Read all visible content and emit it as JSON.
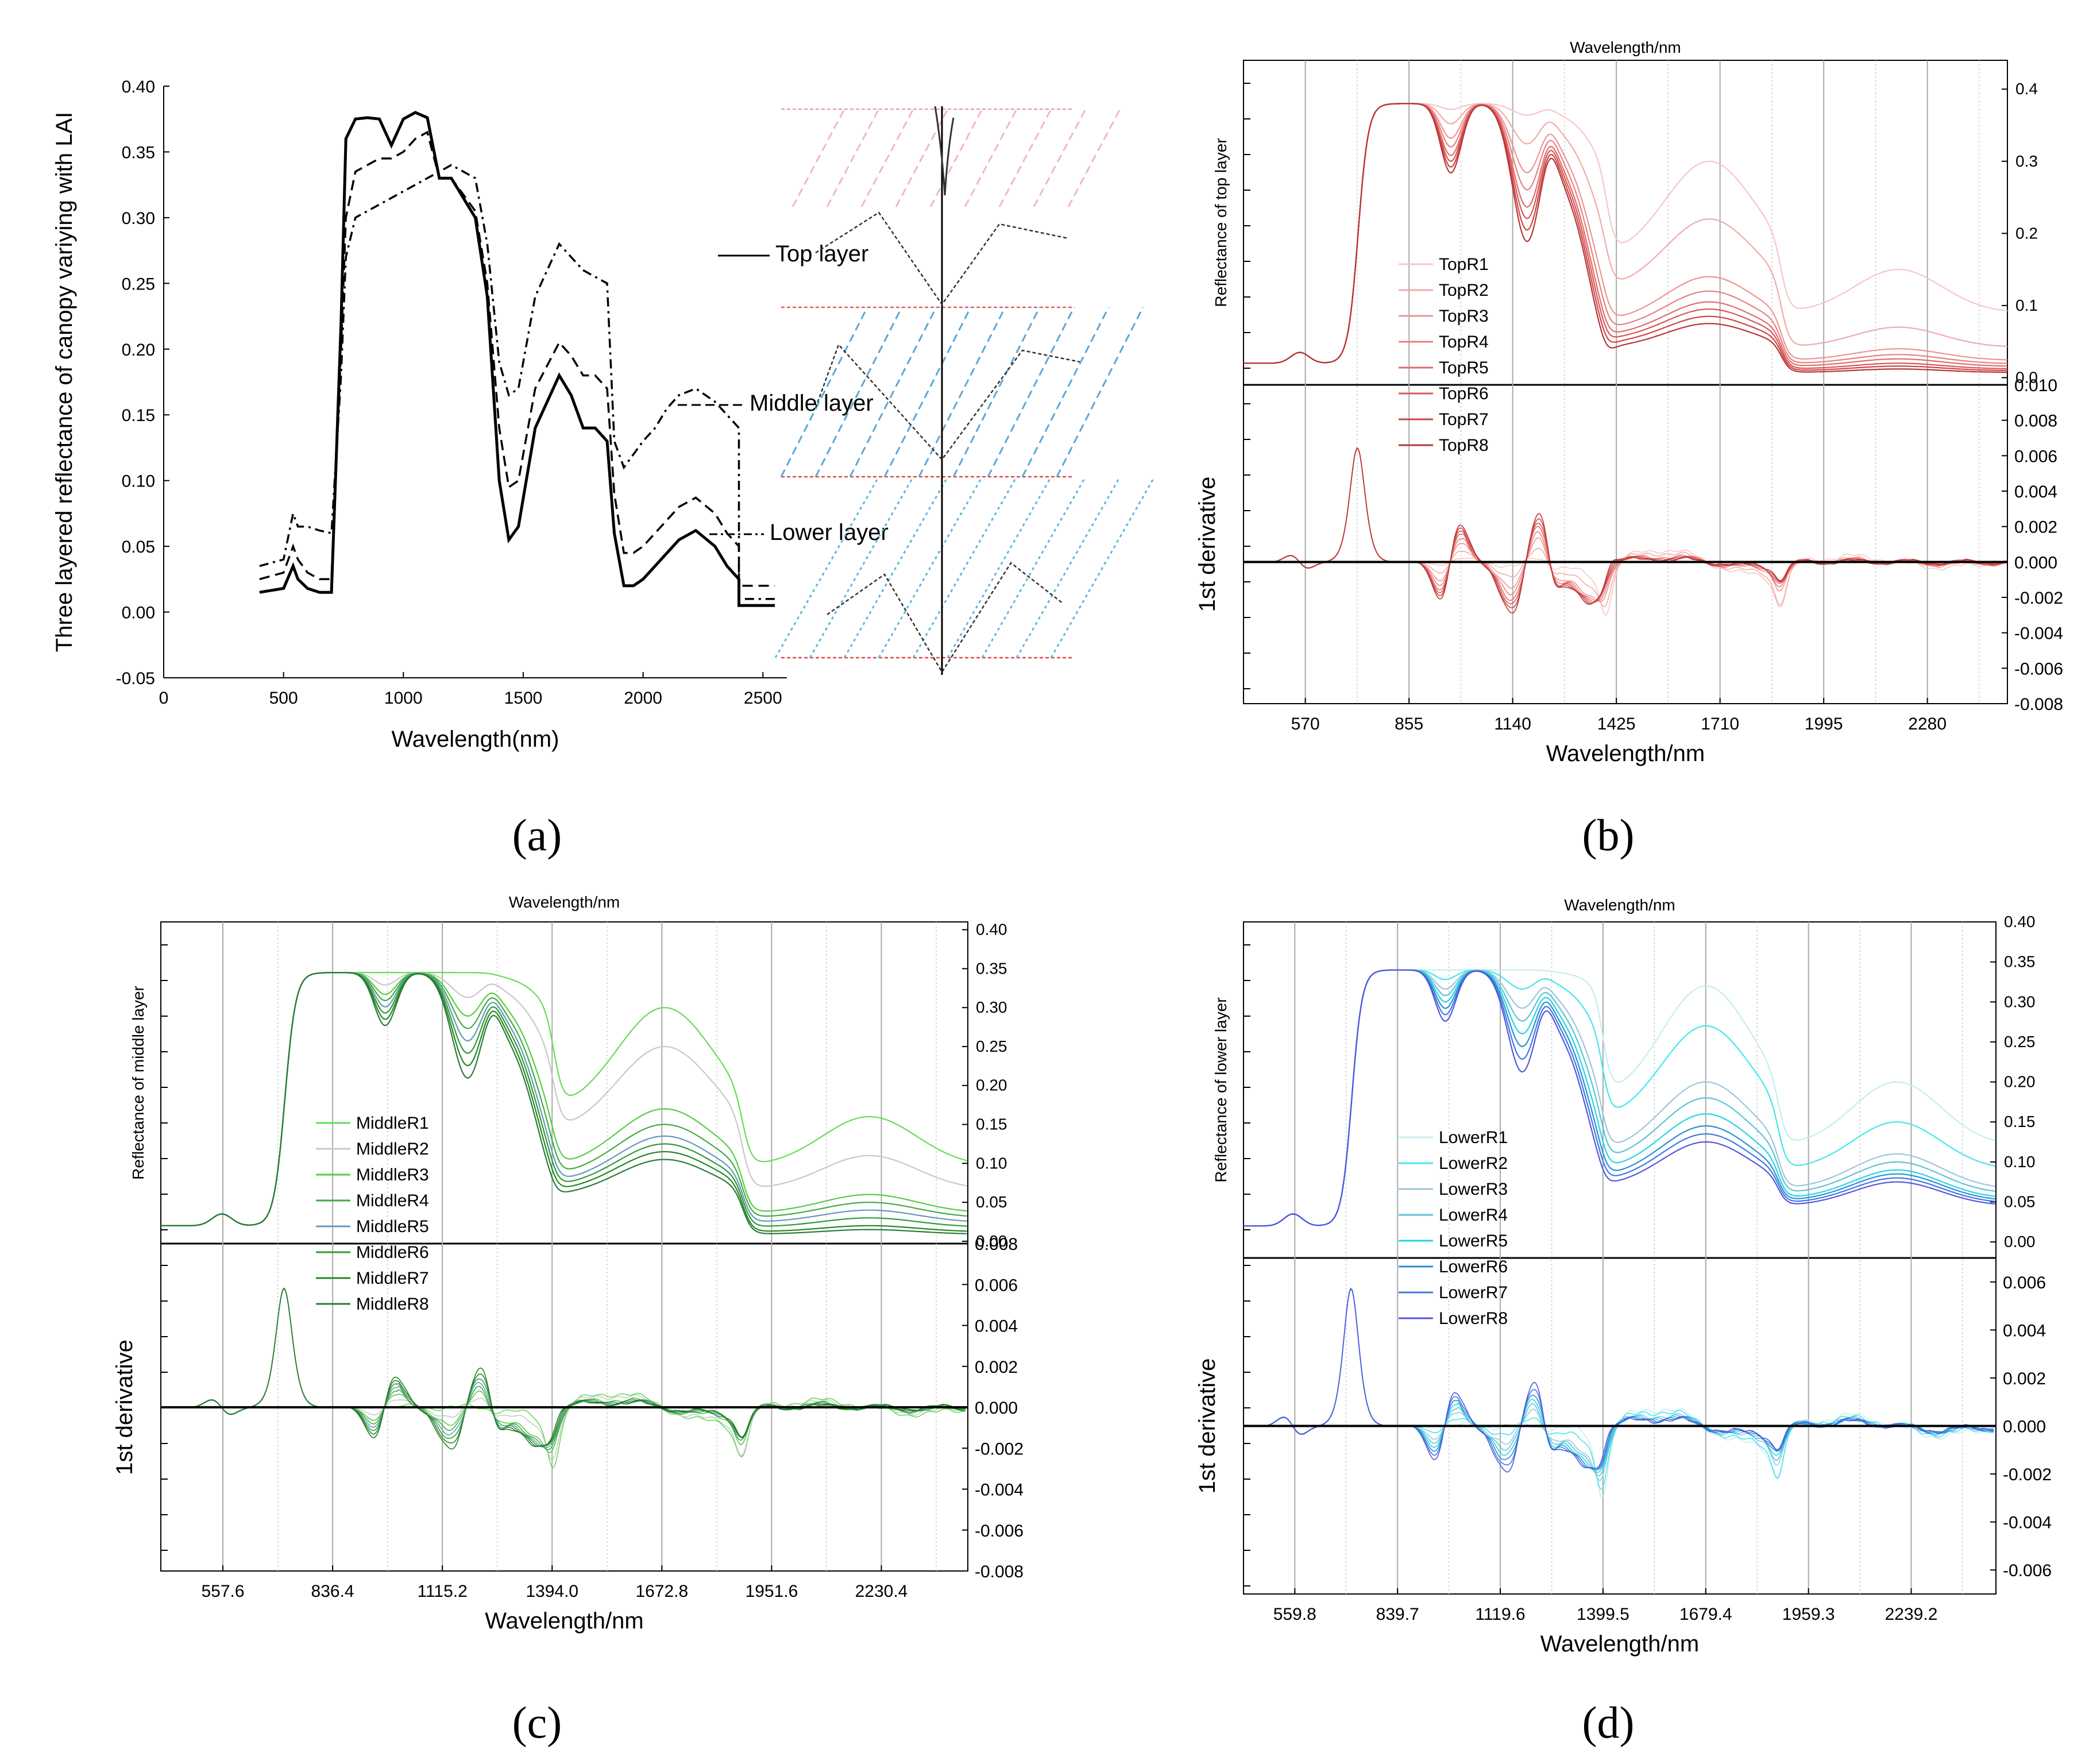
{
  "captions": [
    "(a)",
    "(b)",
    "(c)",
    "(d)"
  ],
  "chart_data": [
    {
      "id": "a",
      "type": "line",
      "ylabel": "Three layered reflectance of canopy variying with LAI",
      "xlabel": "Wavelength(nm)",
      "xlim": [
        0,
        2600
      ],
      "ylim": [
        -0.05,
        0.4
      ],
      "xticks": [
        0,
        500,
        1000,
        1500,
        2000,
        2500
      ],
      "yticks": [
        0.4,
        0.35,
        0.3,
        0.25,
        0.2,
        0.15,
        0.1,
        0.05,
        0.0,
        -0.05
      ],
      "ytick_labels": [
        "0.40",
        "0.35",
        "0.30",
        "0.25",
        "0.20",
        "0.15",
        "0.10",
        "0.05",
        "0.00",
        "-0.05"
      ],
      "series": [
        {
          "name": "Top layer",
          "style": "solid",
          "x": [
            400,
            500,
            540,
            560,
            600,
            650,
            700,
            740,
            760,
            800,
            850,
            900,
            950,
            1000,
            1050,
            1100,
            1150,
            1200,
            1300,
            1350,
            1400,
            1440,
            1480,
            1550,
            1650,
            1700,
            1750,
            1800,
            1850,
            1880,
            1920,
            1960,
            2000,
            2050,
            2100,
            2150,
            2220,
            2300,
            2350,
            2400,
            2400,
            2550
          ],
          "y": [
            0.015,
            0.018,
            0.035,
            0.025,
            0.018,
            0.015,
            0.015,
            0.22,
            0.36,
            0.375,
            0.376,
            0.375,
            0.355,
            0.375,
            0.38,
            0.376,
            0.33,
            0.33,
            0.3,
            0.24,
            0.1,
            0.055,
            0.065,
            0.14,
            0.18,
            0.165,
            0.14,
            0.14,
            0.13,
            0.06,
            0.02,
            0.02,
            0.025,
            0.035,
            0.045,
            0.055,
            0.062,
            0.05,
            0.035,
            0.025,
            0.005,
            0.005
          ]
        },
        {
          "name": "Middle layer",
          "style": "dashed",
          "x": [
            400,
            500,
            540,
            560,
            600,
            650,
            700,
            740,
            760,
            800,
            850,
            900,
            950,
            1000,
            1050,
            1100,
            1150,
            1200,
            1300,
            1350,
            1400,
            1440,
            1480,
            1550,
            1650,
            1700,
            1750,
            1800,
            1850,
            1880,
            1920,
            1960,
            2000,
            2050,
            2100,
            2150,
            2220,
            2300,
            2350,
            2400,
            2400,
            2550
          ],
          "y": [
            0.025,
            0.03,
            0.05,
            0.04,
            0.03,
            0.025,
            0.025,
            0.2,
            0.3,
            0.335,
            0.34,
            0.345,
            0.345,
            0.35,
            0.36,
            0.365,
            0.33,
            0.33,
            0.305,
            0.25,
            0.14,
            0.095,
            0.1,
            0.17,
            0.205,
            0.195,
            0.18,
            0.18,
            0.17,
            0.09,
            0.045,
            0.045,
            0.05,
            0.06,
            0.07,
            0.08,
            0.087,
            0.075,
            0.06,
            0.05,
            0.02,
            0.02
          ]
        },
        {
          "name": "Lower layer",
          "style": "dashdot",
          "x": [
            400,
            500,
            540,
            560,
            600,
            650,
            700,
            740,
            760,
            800,
            850,
            900,
            950,
            1000,
            1050,
            1100,
            1150,
            1200,
            1300,
            1350,
            1400,
            1440,
            1480,
            1550,
            1650,
            1700,
            1750,
            1800,
            1850,
            1880,
            1920,
            1960,
            2000,
            2050,
            2100,
            2150,
            2220,
            2300,
            2350,
            2400,
            2400,
            2550
          ],
          "y": [
            0.035,
            0.04,
            0.075,
            0.065,
            0.065,
            0.062,
            0.06,
            0.18,
            0.27,
            0.3,
            0.305,
            0.31,
            0.315,
            0.32,
            0.325,
            0.33,
            0.335,
            0.34,
            0.33,
            0.28,
            0.19,
            0.165,
            0.17,
            0.24,
            0.28,
            0.27,
            0.26,
            0.255,
            0.25,
            0.13,
            0.11,
            0.12,
            0.13,
            0.14,
            0.155,
            0.165,
            0.17,
            0.16,
            0.15,
            0.14,
            0.01,
            0.01
          ]
        }
      ],
      "labels": [
        "Top layer",
        "Middle layer",
        "Lower layer"
      ]
    },
    {
      "id": "b",
      "type": "line",
      "top_xlabel": "Wavelength/nm",
      "xlabel": "Wavelength/nm",
      "ylabel_top": "Reflectance of top layer",
      "ylabel_bottom": "1st derivative",
      "xlim": [
        400,
        2500
      ],
      "xticks": [
        570,
        855,
        1140,
        1425,
        1710,
        1995,
        2280
      ],
      "xtick_labels": [
        "570",
        "855",
        "1140",
        "1425",
        "1710",
        "1995",
        "2280"
      ],
      "ylim_top": [
        -0.01,
        0.44
      ],
      "yticks_top": [
        0.4,
        0.3,
        0.2,
        0.1,
        0.0
      ],
      "ytick_labels_top": [
        "0.4",
        "0.3",
        "0.2",
        "0.1",
        "0.0"
      ],
      "ylim_bottom": [
        -0.008,
        0.01
      ],
      "yticks_bottom": [
        0.01,
        0.008,
        0.006,
        0.004,
        0.002,
        0.0,
        -0.002,
        -0.004,
        -0.006,
        -0.008
      ],
      "ytick_labels_bottom": [
        "0.010",
        "0.008",
        "0.006",
        "0.004",
        "0.002",
        "0.000",
        "-0.002",
        "-0.004",
        "-0.006",
        "-0.008"
      ],
      "legend": [
        "TopR1",
        "TopR2",
        "TopR3",
        "TopR4",
        "TopR5",
        "TopR6",
        "TopR7",
        "TopR8"
      ],
      "colors": [
        "#f7c6c6",
        "#f2aaaa",
        "#ee9494",
        "#e88080",
        "#e06c6c",
        "#d65858",
        "#cc4646",
        "#b83434"
      ],
      "series_params": {
        "plateau": 0.38,
        "water1": [
          0.01,
          0.035,
          0.06,
          0.075,
          0.09,
          0.1,
          0.11,
          0.12
        ],
        "swir1": [
          0.3,
          0.22,
          0.14,
          0.12,
          0.105,
          0.095,
          0.085,
          0.075
        ],
        "swir2": [
          0.15,
          0.07,
          0.04,
          0.032,
          0.026,
          0.02,
          0.016,
          0.012
        ]
      }
    },
    {
      "id": "c",
      "type": "line",
      "top_xlabel": "Wavelength/nm",
      "xlabel": "Wavelength/nm",
      "ylabel_top": "Reflectance of middle layer",
      "ylabel_bottom": "1st derivative",
      "xlim": [
        400,
        2450
      ],
      "xticks": [
        557.6,
        836.4,
        1115.2,
        1394.0,
        1672.8,
        1951.6,
        2230.4
      ],
      "xtick_labels": [
        "557.6",
        "836.4",
        "1115.2",
        "1394.0",
        "1672.8",
        "1951.6",
        "2230.4"
      ],
      "ylim_top": [
        -0.003,
        0.41
      ],
      "yticks_top": [
        0.4,
        0.35,
        0.3,
        0.25,
        0.2,
        0.15,
        0.1,
        0.05,
        0.0
      ],
      "ytick_labels_top": [
        "0.40",
        "0.35",
        "0.30",
        "0.25",
        "0.20",
        "0.15",
        "0.10",
        "0.05",
        "0.00"
      ],
      "ylim_bottom": [
        -0.008,
        0.008
      ],
      "yticks_bottom": [
        0.008,
        0.006,
        0.004,
        0.002,
        0.0,
        -0.002,
        -0.004,
        -0.006,
        -0.008
      ],
      "ytick_labels_bottom": [
        "0.008",
        "0.006",
        "0.004",
        "0.002",
        "0.000",
        "-0.002",
        "-0.004",
        "-0.006",
        "-0.008"
      ],
      "legend": [
        "MiddleR1",
        "MiddleR2",
        "MiddleR3",
        "MiddleR4",
        "MiddleR5",
        "MiddleR6",
        "MiddleR7",
        "MiddleR8"
      ],
      "colors": [
        "#66dd55",
        "#c8c8c8",
        "#55cc44",
        "#44aa44",
        "#6699bb",
        "#339933",
        "#228822",
        "#2a7a3a"
      ],
      "series_params": {
        "plateau": 0.345,
        "water1": [
          0.0,
          0.02,
          0.035,
          0.045,
          0.055,
          0.065,
          0.075,
          0.085
        ],
        "swir1": [
          0.3,
          0.25,
          0.17,
          0.15,
          0.135,
          0.125,
          0.115,
          0.105
        ],
        "swir2": [
          0.16,
          0.11,
          0.06,
          0.05,
          0.04,
          0.03,
          0.02,
          0.015
        ]
      }
    },
    {
      "id": "d",
      "type": "line",
      "top_xlabel": "Wavelength/nm",
      "xlabel": "Wavelength/nm",
      "ylabel_top": "Reflectance of lower layer",
      "ylabel_bottom": "1st derivative",
      "xlim": [
        420,
        2470
      ],
      "xticks": [
        559.8,
        839.7,
        1119.6,
        1399.5,
        1679.4,
        1959.3,
        2239.2
      ],
      "xtick_labels": [
        "559.8",
        "839.7",
        "1119.6",
        "1399.5",
        "1679.4",
        "1959.3",
        "2239.2"
      ],
      "ylim_top": [
        -0.02,
        0.4
      ],
      "yticks_top": [
        0.4,
        0.35,
        0.3,
        0.25,
        0.2,
        0.15,
        0.1,
        0.05,
        0.0
      ],
      "ytick_labels_top": [
        "0.40",
        "0.35",
        "0.30",
        "0.25",
        "0.20",
        "0.15",
        "0.10",
        "0.05",
        "0.00"
      ],
      "ylim_bottom": [
        -0.007,
        0.007
      ],
      "yticks_bottom": [
        0.006,
        0.004,
        0.002,
        0.0,
        -0.002,
        -0.004,
        -0.006
      ],
      "ytick_labels_bottom": [
        "0.006",
        "0.004",
        "0.002",
        "0.000",
        "-0.002",
        "-0.004",
        "-0.006"
      ],
      "legend": [
        "LowerR1",
        "LowerR2",
        "LowerR3",
        "LowerR4",
        "LowerR5",
        "LowerR6",
        "LowerR7",
        "LowerR8"
      ],
      "colors": [
        "#c5ecf2",
        "#44e6ee",
        "#9cc6dc",
        "#5ec3d3",
        "#22d6e3",
        "#2a8fd6",
        "#3a7ae0",
        "#5555dd"
      ],
      "series_params": {
        "plateau": 0.34,
        "water1": [
          0.0,
          0.015,
          0.03,
          0.04,
          0.05,
          0.06,
          0.07,
          0.08
        ],
        "swir1": [
          0.32,
          0.27,
          0.2,
          0.18,
          0.16,
          0.145,
          0.135,
          0.125
        ],
        "swir2": [
          0.2,
          0.15,
          0.11,
          0.1,
          0.09,
          0.085,
          0.08,
          0.075
        ]
      }
    }
  ]
}
